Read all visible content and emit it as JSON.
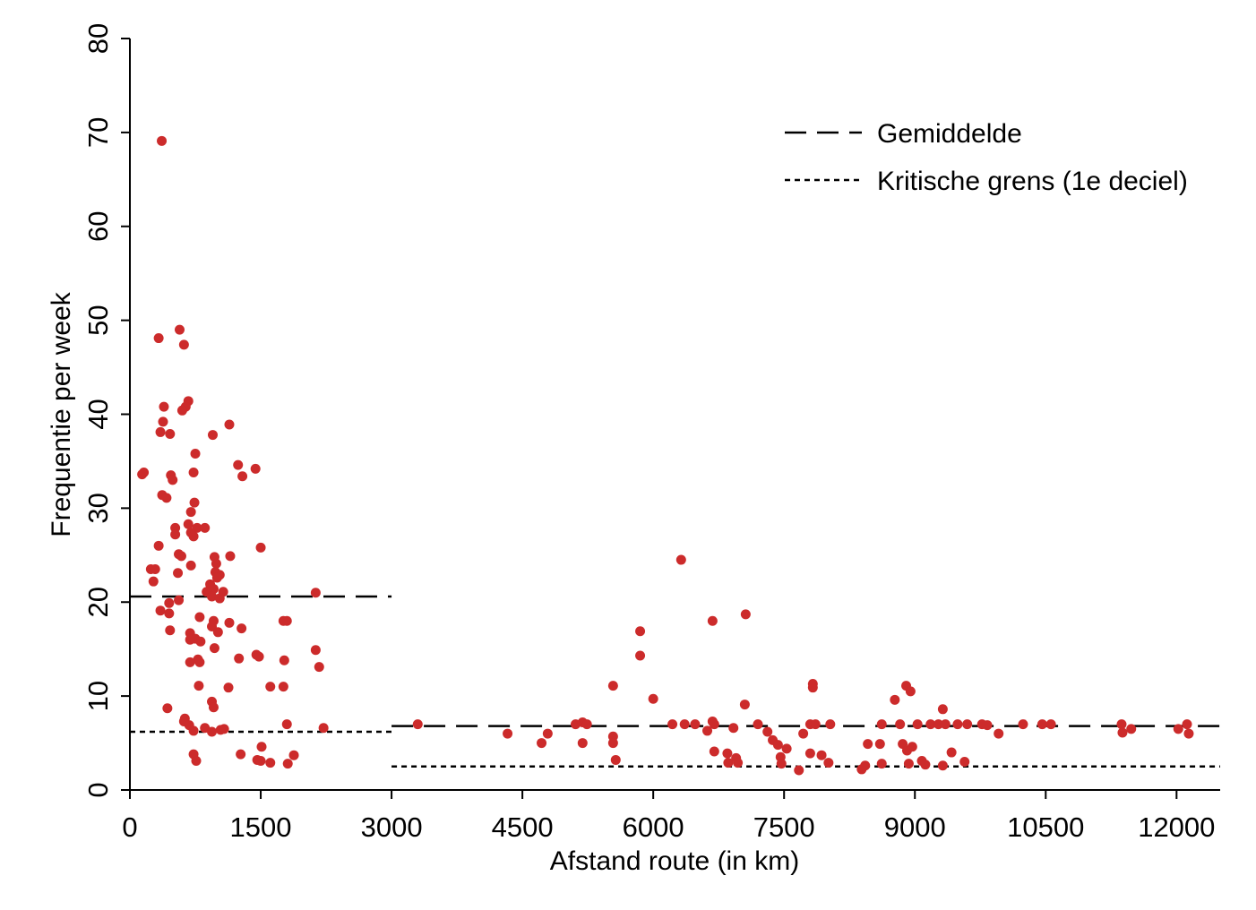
{
  "chart_data": {
    "type": "scatter",
    "xlabel": "Afstand route (in km)",
    "ylabel": "Frequentie per week",
    "xlim": [
      0,
      12500
    ],
    "ylim": [
      0,
      80
    ],
    "xticks": [
      0,
      1500,
      3000,
      4500,
      6000,
      7500,
      9000,
      10500,
      12000
    ],
    "xtick_labels": [
      "0",
      "1500",
      "3000",
      "4500",
      "6000",
      "7500",
      "9000",
      "10500",
      "12000"
    ],
    "yticks": [
      0,
      10,
      20,
      30,
      40,
      50,
      60,
      70,
      80
    ],
    "ytick_labels": [
      "0",
      "10",
      "20",
      "30",
      "40",
      "50",
      "60",
      "70",
      "80"
    ],
    "point_color": "#cc2b2b",
    "grid": false,
    "legend": {
      "position": "top-right",
      "entries": [
        {
          "label": "Gemiddelde",
          "style": "dashed"
        },
        {
          "label": "Kritische grens (1e deciel)",
          "style": "dotted"
        }
      ]
    },
    "reference_lines": [
      {
        "name": "Gemiddelde",
        "style": "dashed",
        "x_from": 0,
        "x_to": 3000,
        "y": 20.6
      },
      {
        "name": "Gemiddelde",
        "style": "dashed",
        "x_from": 3000,
        "x_to": 12500,
        "y": 6.8
      },
      {
        "name": "Kritische grens (1e deciel)",
        "style": "dotted",
        "x_from": 0,
        "x_to": 3000,
        "y": 6.2
      },
      {
        "name": "Kritische grens (1e deciel)",
        "style": "dotted",
        "x_from": 3000,
        "x_to": 12500,
        "y": 2.5
      }
    ],
    "points": [
      [
        365,
        69.1
      ],
      [
        570,
        49.0
      ],
      [
        330,
        48.1
      ],
      [
        620,
        47.4
      ],
      [
        390,
        40.8
      ],
      [
        670,
        41.4
      ],
      [
        640,
        40.8
      ],
      [
        600,
        40.4
      ],
      [
        380,
        39.2
      ],
      [
        1140,
        38.9
      ],
      [
        350,
        38.1
      ],
      [
        460,
        37.9
      ],
      [
        950,
        37.8
      ],
      [
        750,
        35.8
      ],
      [
        1240,
        34.6
      ],
      [
        1440,
        34.2
      ],
      [
        160,
        33.8
      ],
      [
        140,
        33.6
      ],
      [
        470,
        33.5
      ],
      [
        730,
        33.8
      ],
      [
        1290,
        33.4
      ],
      [
        490,
        33.0
      ],
      [
        370,
        31.4
      ],
      [
        420,
        31.1
      ],
      [
        740,
        30.6
      ],
      [
        700,
        29.6
      ],
      [
        670,
        28.3
      ],
      [
        520,
        27.9
      ],
      [
        770,
        27.9
      ],
      [
        860,
        27.9
      ],
      [
        700,
        27.4
      ],
      [
        520,
        27.2
      ],
      [
        730,
        27.0
      ],
      [
        330,
        26.0
      ],
      [
        1500,
        25.8
      ],
      [
        560,
        25.1
      ],
      [
        590,
        24.9
      ],
      [
        970,
        24.8
      ],
      [
        1150,
        24.9
      ],
      [
        990,
        24.1
      ],
      [
        700,
        23.9
      ],
      [
        240,
        23.5
      ],
      [
        290,
        23.5
      ],
      [
        980,
        23.2
      ],
      [
        550,
        23.1
      ],
      [
        1030,
        22.9
      ],
      [
        1000,
        22.6
      ],
      [
        270,
        22.2
      ],
      [
        920,
        21.9
      ],
      [
        960,
        21.4
      ],
      [
        880,
        21.1
      ],
      [
        1070,
        21.1
      ],
      [
        940,
        20.6
      ],
      [
        1030,
        20.4
      ],
      [
        560,
        20.2
      ],
      [
        450,
        19.9
      ],
      [
        2130,
        21.0
      ],
      [
        350,
        19.1
      ],
      [
        450,
        18.8
      ],
      [
        800,
        18.4
      ],
      [
        960,
        18.0
      ],
      [
        1140,
        17.8
      ],
      [
        1800,
        18.0
      ],
      [
        1760,
        18.0
      ],
      [
        940,
        17.4
      ],
      [
        1280,
        17.2
      ],
      [
        460,
        17.0
      ],
      [
        1010,
        16.8
      ],
      [
        690,
        16.7
      ],
      [
        750,
        16.1
      ],
      [
        690,
        16.0
      ],
      [
        810,
        15.8
      ],
      [
        970,
        15.1
      ],
      [
        2130,
        14.9
      ],
      [
        1450,
        14.4
      ],
      [
        1480,
        14.2
      ],
      [
        1250,
        14.0
      ],
      [
        780,
        13.9
      ],
      [
        690,
        13.6
      ],
      [
        800,
        13.6
      ],
      [
        1770,
        13.8
      ],
      [
        2170,
        13.1
      ],
      [
        790,
        11.1
      ],
      [
        1130,
        10.9
      ],
      [
        1610,
        11.0
      ],
      [
        1760,
        11.0
      ],
      [
        940,
        9.4
      ],
      [
        960,
        8.8
      ],
      [
        430,
        8.7
      ],
      [
        630,
        7.6
      ],
      [
        620,
        7.3
      ],
      [
        680,
        6.9
      ],
      [
        1800,
        7.0
      ],
      [
        860,
        6.6
      ],
      [
        1080,
        6.5
      ],
      [
        1040,
        6.4
      ],
      [
        730,
        6.3
      ],
      [
        2220,
        6.6
      ],
      [
        940,
        6.2
      ],
      [
        1510,
        4.6
      ],
      [
        730,
        3.8
      ],
      [
        1270,
        3.8
      ],
      [
        1880,
        3.7
      ],
      [
        760,
        3.1
      ],
      [
        1460,
        3.2
      ],
      [
        1500,
        3.1
      ],
      [
        1610,
        2.9
      ],
      [
        1810,
        2.8
      ],
      [
        6320,
        24.5
      ],
      [
        7060,
        18.7
      ],
      [
        6680,
        18.0
      ],
      [
        5850,
        16.9
      ],
      [
        5850,
        14.3
      ],
      [
        5540,
        11.1
      ],
      [
        6000,
        9.7
      ],
      [
        7830,
        11.3
      ],
      [
        7830,
        10.9
      ],
      [
        8900,
        11.1
      ],
      [
        8950,
        10.5
      ],
      [
        8770,
        9.6
      ],
      [
        7050,
        9.1
      ],
      [
        9320,
        8.6
      ],
      [
        3300,
        7.0
      ],
      [
        4330,
        6.0
      ],
      [
        4720,
        5.0
      ],
      [
        4790,
        6.0
      ],
      [
        5110,
        7.0
      ],
      [
        5190,
        7.2
      ],
      [
        5240,
        7.0
      ],
      [
        5190,
        5.0
      ],
      [
        5540,
        5.7
      ],
      [
        5540,
        5.0
      ],
      [
        5570,
        3.2
      ],
      [
        6220,
        7.0
      ],
      [
        6360,
        7.0
      ],
      [
        6480,
        7.0
      ],
      [
        6620,
        6.3
      ],
      [
        6680,
        7.3
      ],
      [
        6700,
        4.1
      ],
      [
        6700,
        7.0
      ],
      [
        6850,
        3.9
      ],
      [
        6860,
        2.9
      ],
      [
        6920,
        6.6
      ],
      [
        6950,
        3.4
      ],
      [
        6970,
        2.9
      ],
      [
        7200,
        7.0
      ],
      [
        7310,
        6.2
      ],
      [
        7370,
        5.3
      ],
      [
        7430,
        4.8
      ],
      [
        7460,
        3.5
      ],
      [
        7470,
        2.8
      ],
      [
        7530,
        4.4
      ],
      [
        7670,
        2.1
      ],
      [
        7720,
        6.0
      ],
      [
        7800,
        7.0
      ],
      [
        7800,
        3.9
      ],
      [
        7860,
        7.0
      ],
      [
        7930,
        3.7
      ],
      [
        8010,
        2.9
      ],
      [
        8030,
        7.0
      ],
      [
        8390,
        2.2
      ],
      [
        8430,
        2.6
      ],
      [
        8460,
        4.9
      ],
      [
        8600,
        4.9
      ],
      [
        8620,
        7.0
      ],
      [
        8620,
        2.8
      ],
      [
        8830,
        7.0
      ],
      [
        8860,
        4.9
      ],
      [
        8910,
        4.2
      ],
      [
        8930,
        2.8
      ],
      [
        8970,
        4.6
      ],
      [
        9030,
        7.0
      ],
      [
        9080,
        3.1
      ],
      [
        9120,
        2.7
      ],
      [
        9180,
        7.0
      ],
      [
        9270,
        7.0
      ],
      [
        9320,
        2.6
      ],
      [
        9350,
        7.0
      ],
      [
        9420,
        4.0
      ],
      [
        9490,
        7.0
      ],
      [
        9570,
        3.0
      ],
      [
        9600,
        7.0
      ],
      [
        9770,
        7.0
      ],
      [
        9830,
        6.9
      ],
      [
        9960,
        6.0
      ],
      [
        10240,
        7.0
      ],
      [
        10460,
        7.0
      ],
      [
        10560,
        7.0
      ],
      [
        11370,
        7.0
      ],
      [
        11380,
        6.1
      ],
      [
        11480,
        6.5
      ],
      [
        12020,
        6.5
      ],
      [
        12120,
        7.0
      ],
      [
        12140,
        6.0
      ]
    ]
  }
}
